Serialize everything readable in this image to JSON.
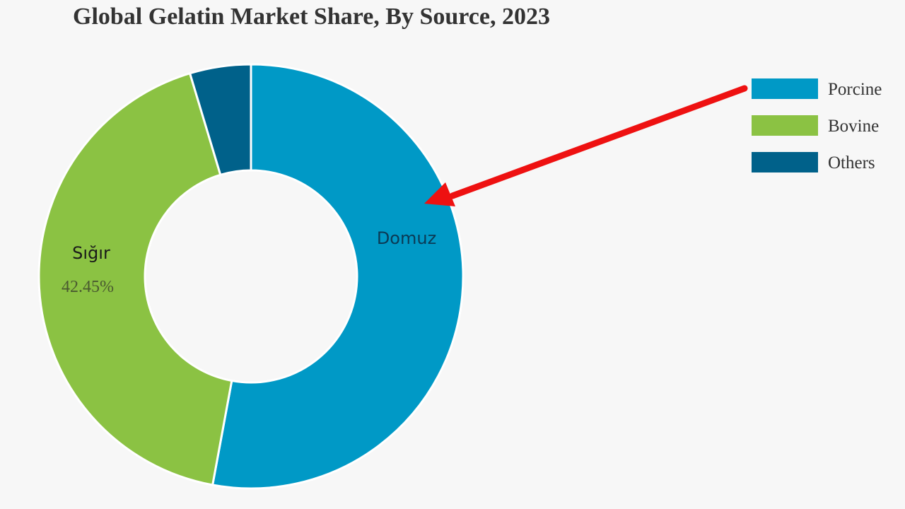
{
  "chart_data": {
    "type": "pie",
    "donut": true,
    "title": "Global Gelatin Market Share, By Source, 2023",
    "categories": [
      "Porcine",
      "Bovine",
      "Others"
    ],
    "values": [
      52.9,
      42.45,
      4.65
    ],
    "unit": "%",
    "colors": [
      "#0099c6",
      "#8bc243",
      "#00618a"
    ],
    "legend_position": "right",
    "data_labels": [
      {
        "category": "Bovine",
        "value_text": "42.45%"
      }
    ]
  },
  "annotations": {
    "porcine_label": "Domuz",
    "bovine_label": "Sığır",
    "arrow_color": "#ee1111",
    "porcine_text_color": "#0b3a55",
    "bovine_text_color": "#1a1a1a",
    "pct_text_color": "#4a5a30"
  }
}
